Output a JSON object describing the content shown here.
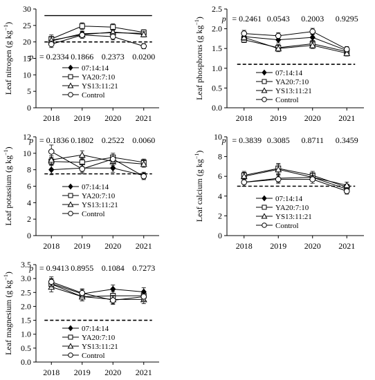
{
  "legend_labels": [
    "07:14:14",
    "YA20:7:10",
    "YS13:11:21",
    "Control"
  ],
  "chart_data": [
    {
      "type": "line",
      "ylabel_main": "Leaf nitrogen (g kg",
      "ylabel_sup": "−1",
      "ylabel_end": ")",
      "categories": [
        "2018",
        "2019",
        "2020",
        "2021"
      ],
      "ylim": [
        0,
        30
      ],
      "yticks": [
        0,
        5,
        10,
        15,
        20,
        25,
        30
      ],
      "p_prefix": "p",
      "p_values": [
        "= 0.2334",
        "0.1866",
        "0.2373",
        "0.0200"
      ],
      "p_position": "bottom",
      "upper_ref": 28,
      "lower_ref": 20,
      "series": [
        {
          "name": "07:14:14",
          "marker": "diamond",
          "values": [
            20.3,
            22.5,
            22.8,
            22.6
          ],
          "err": [
            1.0,
            0.8,
            0.8,
            0.8
          ]
        },
        {
          "name": "YA20:7:10",
          "marker": "square",
          "values": [
            20.9,
            24.8,
            24.5,
            22.9
          ],
          "err": [
            1.2,
            1.0,
            1.0,
            0.8
          ]
        },
        {
          "name": "YS13:11:21",
          "marker": "triangle",
          "values": [
            20.5,
            22.2,
            23.0,
            22.3
          ],
          "err": [
            1.0,
            0.8,
            0.8,
            0.8
          ]
        },
        {
          "name": "Control",
          "marker": "circle",
          "values": [
            19.3,
            22.1,
            21.6,
            18.7
          ],
          "err": [
            1.0,
            1.0,
            1.0,
            0.8
          ]
        }
      ]
    },
    {
      "type": "line",
      "ylabel_main": "Leaf phosphorus (g kg",
      "ylabel_sup": "−1",
      "ylabel_end": ")",
      "categories": [
        "2018",
        "2019",
        "2020",
        "2021"
      ],
      "ylim": [
        0,
        2.5
      ],
      "yticks": [
        0,
        0.5,
        1.0,
        1.5,
        2.0,
        2.5
      ],
      "p_prefix": "p",
      "p_values": [
        "= 0.2461",
        "0.0543",
        "0.2003",
        "0.9295"
      ],
      "p_position": "top",
      "lower_ref": 1.1,
      "series": [
        {
          "name": "07:14:14",
          "marker": "diamond",
          "values": [
            1.8,
            1.72,
            1.78,
            1.45
          ],
          "err": [
            0.07,
            0.08,
            0.08,
            0.07
          ]
        },
        {
          "name": "YA20:7:10",
          "marker": "square",
          "values": [
            1.72,
            1.52,
            1.62,
            1.42
          ],
          "err": [
            0.07,
            0.08,
            0.08,
            0.07
          ]
        },
        {
          "name": "YS13:11:21",
          "marker": "triangle",
          "values": [
            1.78,
            1.5,
            1.58,
            1.38
          ],
          "err": [
            0.07,
            0.08,
            0.08,
            0.07
          ]
        },
        {
          "name": "Control",
          "marker": "circle",
          "values": [
            1.88,
            1.82,
            1.93,
            1.48
          ],
          "err": [
            0.08,
            0.08,
            0.08,
            0.07
          ]
        }
      ]
    },
    {
      "type": "line",
      "ylabel_main": "Leaf potassium (g kg",
      "ylabel_sup": "−1",
      "ylabel_end": ")",
      "categories": [
        "2018",
        "2019",
        "2020",
        "2021"
      ],
      "ylim": [
        0,
        12
      ],
      "yticks": [
        0,
        2,
        4,
        6,
        8,
        10,
        12
      ],
      "p_prefix": "p",
      "p_values": [
        "= 0.1836",
        "0.1802",
        "0.2522",
        "0.0060"
      ],
      "p_position": "top",
      "lower_ref": 7.5,
      "series": [
        {
          "name": "07:14:14",
          "marker": "diamond",
          "values": [
            8.0,
            8.2,
            8.2,
            7.3
          ],
          "err": [
            0.6,
            0.5,
            0.5,
            0.4
          ]
        },
        {
          "name": "YA20:7:10",
          "marker": "square",
          "values": [
            9.0,
            8.9,
            9.5,
            8.9
          ],
          "err": [
            0.5,
            0.5,
            0.5,
            0.4
          ]
        },
        {
          "name": "YS13:11:21",
          "marker": "triangle",
          "values": [
            9.2,
            9.8,
            9.0,
            8.7
          ],
          "err": [
            0.5,
            0.5,
            0.5,
            0.4
          ]
        },
        {
          "name": "Control",
          "marker": "circle",
          "values": [
            10.2,
            8.1,
            9.3,
            7.2
          ],
          "err": [
            0.8,
            0.6,
            0.5,
            0.4
          ]
        }
      ]
    },
    {
      "type": "line",
      "ylabel_main": "Leaf calcium (g kg",
      "ylabel_sup": "−1",
      "ylabel_end": ")",
      "categories": [
        "2018",
        "2019",
        "2020",
        "2021"
      ],
      "ylim": [
        0,
        10
      ],
      "yticks": [
        0,
        2,
        4,
        6,
        8,
        10
      ],
      "p_prefix": "p",
      "p_values": [
        "= 0.3839",
        "0.3085",
        "0.8711",
        "0.3459"
      ],
      "p_position": "top",
      "lower_ref": 5,
      "series": [
        {
          "name": "07:14:14",
          "marker": "diamond",
          "values": [
            5.4,
            5.8,
            5.9,
            4.7
          ],
          "err": [
            0.4,
            0.4,
            0.4,
            0.3
          ]
        },
        {
          "name": "YA20:7:10",
          "marker": "square",
          "values": [
            6.1,
            6.8,
            6.1,
            4.9
          ],
          "err": [
            0.4,
            0.5,
            0.4,
            0.3
          ]
        },
        {
          "name": "YS13:11:21",
          "marker": "triangle",
          "values": [
            6.0,
            6.7,
            5.9,
            5.1
          ],
          "err": [
            0.4,
            0.5,
            0.4,
            0.3
          ]
        },
        {
          "name": "Control",
          "marker": "circle",
          "values": [
            5.4,
            5.7,
            5.7,
            4.5
          ],
          "err": [
            0.4,
            0.4,
            0.4,
            0.3
          ]
        }
      ]
    },
    {
      "type": "line",
      "ylabel_main": "Leaf magnesium (g kg",
      "ylabel_sup": "−1",
      "ylabel_end": ")",
      "categories": [
        "2018",
        "2019",
        "2020",
        "2021"
      ],
      "ylim": [
        0,
        3.5
      ],
      "yticks": [
        0,
        0.5,
        1.0,
        1.5,
        2.0,
        2.5,
        3.0,
        3.5
      ],
      "p_prefix": "p",
      "p_values": [
        "= 0.9413",
        "0.8955",
        "0.1084",
        "0.7273"
      ],
      "p_position": "top",
      "lower_ref": 1.5,
      "series": [
        {
          "name": "07:14:14",
          "marker": "diamond",
          "values": [
            2.82,
            2.45,
            2.62,
            2.52
          ],
          "err": [
            0.18,
            0.15,
            0.15,
            0.15
          ]
        },
        {
          "name": "YA20:7:10",
          "marker": "square",
          "values": [
            2.8,
            2.35,
            2.38,
            2.38
          ],
          "err": [
            0.18,
            0.15,
            0.15,
            0.15
          ]
        },
        {
          "name": "YS13:11:21",
          "marker": "triangle",
          "values": [
            2.7,
            2.35,
            2.25,
            2.25
          ],
          "err": [
            0.18,
            0.15,
            0.15,
            0.15
          ]
        },
        {
          "name": "Control",
          "marker": "circle",
          "values": [
            2.88,
            2.48,
            2.22,
            2.35
          ],
          "err": [
            0.18,
            0.15,
            0.15,
            0.15
          ]
        }
      ]
    }
  ]
}
